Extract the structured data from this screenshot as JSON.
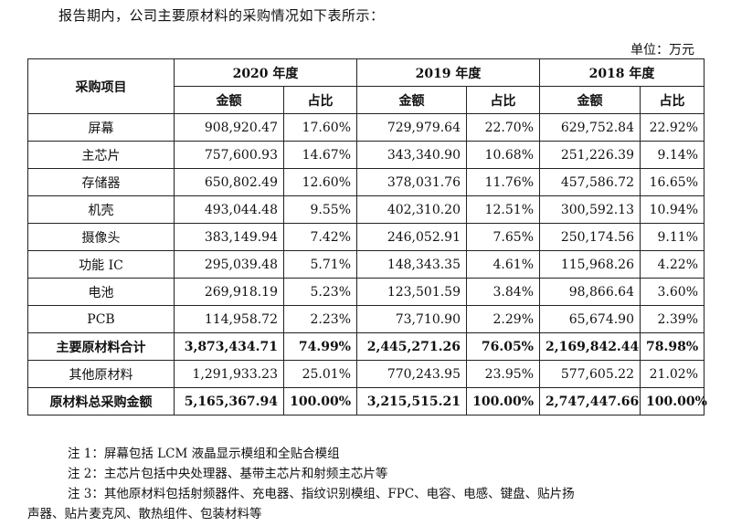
{
  "intro": "报告期内，公司主要原材料的采购情况如下表所示：",
  "unit": "单位：万元",
  "table": {
    "item_header": "采购项目",
    "years": [
      "2020 年度",
      "2019 年度",
      "2018 年度"
    ],
    "amount_header": "金额",
    "ratio_header": "占比",
    "rows": [
      {
        "item": "屏幕",
        "bold": false,
        "cells": [
          "908,920.47",
          "17.60%",
          "729,979.64",
          "22.70%",
          "629,752.84",
          "22.92%"
        ]
      },
      {
        "item": "主芯片",
        "bold": false,
        "cells": [
          "757,600.93",
          "14.67%",
          "343,340.90",
          "10.68%",
          "251,226.39",
          "9.14%"
        ]
      },
      {
        "item": "存储器",
        "bold": false,
        "cells": [
          "650,802.49",
          "12.60%",
          "378,031.76",
          "11.76%",
          "457,586.72",
          "16.65%"
        ]
      },
      {
        "item": "机壳",
        "bold": false,
        "cells": [
          "493,044.48",
          "9.55%",
          "402,310.20",
          "12.51%",
          "300,592.13",
          "10.94%"
        ]
      },
      {
        "item": "摄像头",
        "bold": false,
        "cells": [
          "383,149.94",
          "7.42%",
          "246,052.91",
          "7.65%",
          "250,174.56",
          "9.11%"
        ]
      },
      {
        "item": "功能 IC",
        "bold": false,
        "cells": [
          "295,039.48",
          "5.71%",
          "148,343.35",
          "4.61%",
          "115,968.26",
          "4.22%"
        ]
      },
      {
        "item": "电池",
        "bold": false,
        "cells": [
          "269,918.19",
          "5.23%",
          "123,501.59",
          "3.84%",
          "98,866.64",
          "3.60%"
        ]
      },
      {
        "item": "PCB",
        "bold": false,
        "cells": [
          "114,958.72",
          "2.23%",
          "73,710.90",
          "2.29%",
          "65,674.90",
          "2.39%"
        ]
      },
      {
        "item": "主要原材料合计",
        "bold": true,
        "cells": [
          "3,873,434.71",
          "74.99%",
          "2,445,271.26",
          "76.05%",
          "2,169,842.44",
          "78.98%"
        ]
      },
      {
        "item": "其他原材料",
        "bold": false,
        "cells": [
          "1,291,933.23",
          "25.01%",
          "770,243.95",
          "23.95%",
          "577,605.22",
          "21.02%"
        ]
      },
      {
        "item": "原材料总采购金额",
        "bold": true,
        "cells": [
          "5,165,367.94",
          "100.00%",
          "3,215,515.21",
          "100.00%",
          "2,747,447.66",
          "100.00%"
        ]
      }
    ]
  },
  "notes": {
    "note1": "注 1：屏幕包括 LCM 液晶显示模组和全贴合模组",
    "note2": "注 2：主芯片包括中央处理器、基带主芯片和射频主芯片等",
    "note3_line1": "注 3：其他原材料包括射频器件、充电器、指纹识别模组、FPC、电容、电感、键盘、贴片扬",
    "note3_line2": "声器、贴片麦克风、散热组件、包装材料等"
  }
}
